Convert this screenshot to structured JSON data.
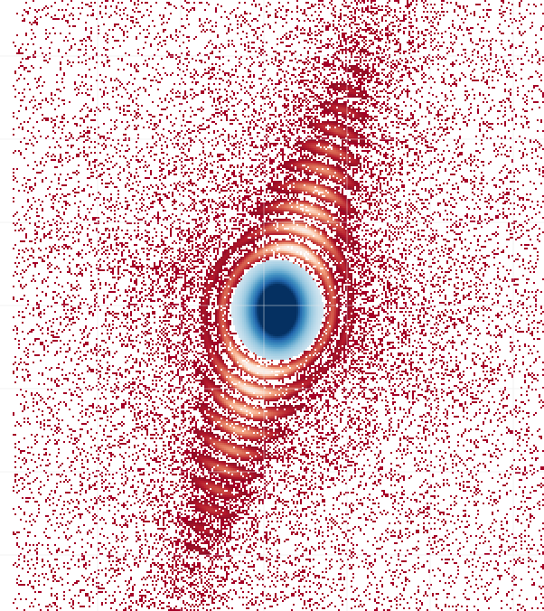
{
  "image": {
    "subject": "diffraction-pattern",
    "colormap": {
      "name": "RdBu",
      "stops": [
        "#67001f",
        "#b2182b",
        "#d6604d",
        "#f4a582",
        "#fddbc7",
        "#f7f7f7",
        "#d1e5f0",
        "#92c5de",
        "#4393c3",
        "#2166ac",
        "#053061"
      ]
    },
    "background_color": "#ffffff",
    "speckle_color": "#a50026",
    "gridline_color": "#e8e8e8"
  }
}
